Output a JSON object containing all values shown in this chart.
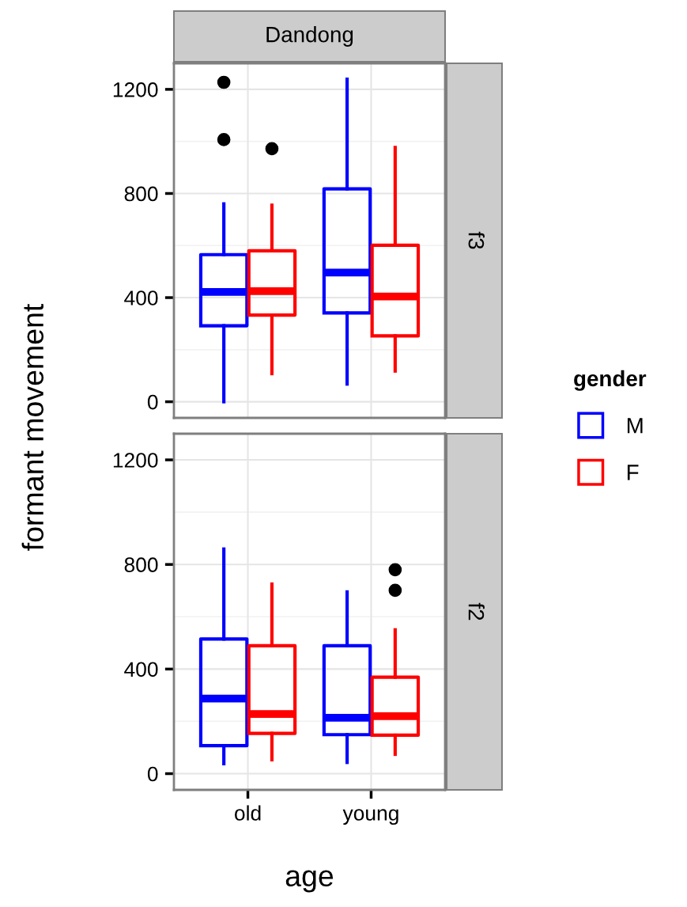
{
  "chart_data": [
    {
      "type": "box",
      "title": "Dandong",
      "ylabel": "formant movement",
      "annotations": [
        "f3"
      ],
      "categories": [
        null,
        null
      ],
      "ylim": [
        -62,
        1300
      ],
      "yticks": [
        0,
        400,
        800,
        1200
      ],
      "grid": true,
      "tick_labels": "y",
      "legend": "right",
      "legend_title": "gender",
      "series": [
        {
          "name": "M",
          "color": "#0000ff",
          "boxes": [
            {
              "low": 0,
              "q1": 292,
              "median": 422,
              "q3": 565,
              "high": 760,
              "outliers": [
                1227,
                1007
              ]
            },
            {
              "low": 68,
              "q1": 341,
              "median": 496,
              "q3": 818,
              "high": 1239
            }
          ]
        },
        {
          "name": "F",
          "color": "#ff0000",
          "boxes": [
            {
              "low": 108,
              "q1": 333,
              "median": 425,
              "q3": 580,
              "high": 755,
              "outliers": [
                972
              ]
            },
            {
              "low": 118,
              "q1": 253,
              "median": 404,
              "q3": 601,
              "high": 977
            }
          ]
        }
      ]
    },
    {
      "type": "box",
      "xlabel": "age",
      "annotations": [
        "f2"
      ],
      "categories": [
        "old",
        "young"
      ],
      "ylim": [
        -62,
        1300
      ],
      "yticks": [
        0,
        400,
        800,
        1200
      ],
      "grid": true,
      "series": [
        {
          "color": "#0000ff",
          "boxes": [
            {
              "low": 38,
              "q1": 107,
              "median": 287,
              "q3": 515,
              "high": 859
            },
            {
              "low": 43,
              "q1": 149,
              "median": 214,
              "q3": 489,
              "high": 695
            }
          ]
        },
        {
          "color": "#ff0000",
          "boxes": [
            {
              "low": 53,
              "q1": 154,
              "median": 228,
              "q3": 489,
              "high": 725
            },
            {
              "low": 74,
              "q1": 147,
              "median": 220,
              "q3": 369,
              "high": 550,
              "outliers": [
                780,
                701
              ]
            }
          ]
        }
      ]
    }
  ]
}
